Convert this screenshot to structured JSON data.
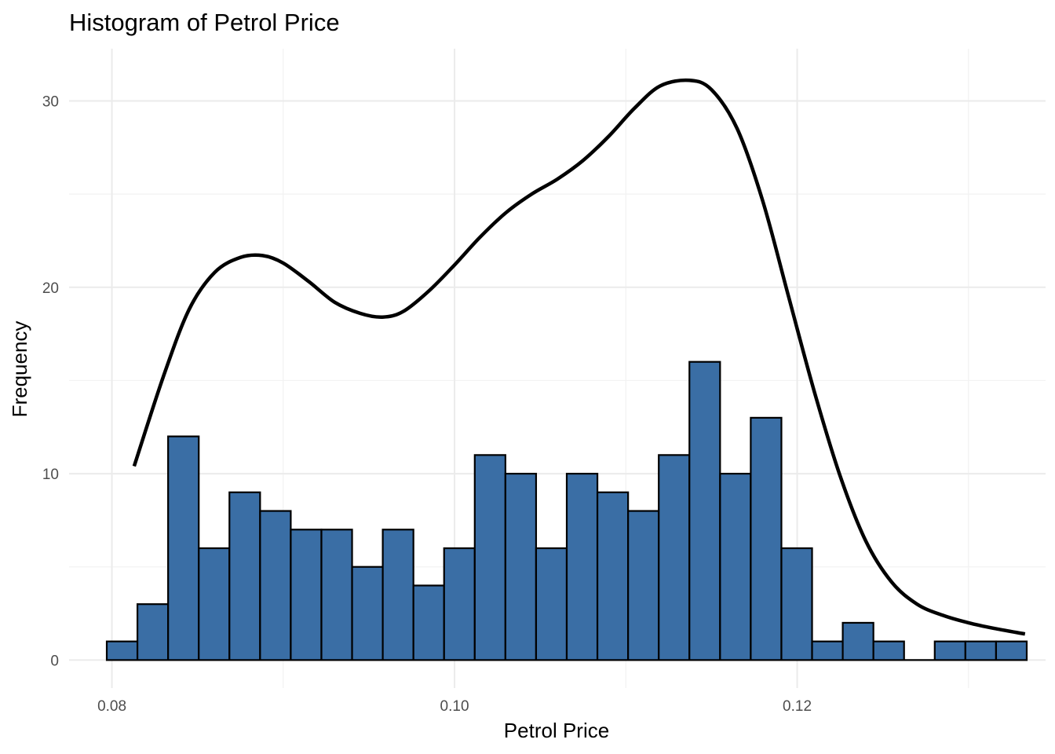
{
  "chart_data": {
    "type": "bar",
    "subtype": "histogram",
    "title": "Histogram of Petrol Price",
    "xlabel": "Petrol Price",
    "ylabel": "Frequency",
    "xlim": [
      0.0775,
      0.1345
    ],
    "ylim": [
      -1.5,
      32.8
    ],
    "x_ticks": [
      {
        "value": 0.08,
        "label": "0.08"
      },
      {
        "value": 0.1,
        "label": "0.10"
      },
      {
        "value": 0.12,
        "label": "0.12"
      }
    ],
    "y_ticks": [
      {
        "value": 0,
        "label": "0"
      },
      {
        "value": 10,
        "label": "10"
      },
      {
        "value": 20,
        "label": "20"
      },
      {
        "value": 30,
        "label": "30"
      }
    ],
    "x_minor_gridlines": [
      0.09,
      0.11,
      0.13
    ],
    "y_minor_gridlines": [
      5,
      15,
      25
    ],
    "bin_start": 0.0797,
    "bin_width": 0.00179,
    "bar_fill": "#3a6ea5",
    "bar_outline": "#000000",
    "values": [
      1,
      3,
      12,
      6,
      9,
      8,
      7,
      7,
      5,
      7,
      4,
      6,
      11,
      10,
      6,
      10,
      9,
      8,
      11,
      16,
      10,
      13,
      6,
      1,
      2,
      1,
      0,
      1,
      1,
      1
    ],
    "density_curve": {
      "color": "#000000",
      "x": [
        0.0813,
        0.083,
        0.0845,
        0.086,
        0.0875,
        0.0888,
        0.09,
        0.0915,
        0.093,
        0.0945,
        0.0958,
        0.097,
        0.0985,
        0.1,
        0.1015,
        0.103,
        0.1045,
        0.106,
        0.1075,
        0.109,
        0.1105,
        0.112,
        0.1137,
        0.115,
        0.1165,
        0.118,
        0.1195,
        0.121,
        0.1225,
        0.124,
        0.1255,
        0.127,
        0.1285,
        0.13,
        0.1315,
        0.1333
      ],
      "y": [
        10.4,
        15.2,
        18.8,
        20.8,
        21.6,
        21.7,
        21.3,
        20.3,
        19.2,
        18.6,
        18.4,
        18.7,
        19.8,
        21.2,
        22.7,
        24.0,
        25.0,
        25.8,
        26.8,
        28.1,
        29.6,
        30.8,
        31.1,
        30.6,
        28.5,
        24.6,
        19.5,
        14.4,
        9.9,
        6.4,
        4.2,
        3.0,
        2.4,
        2.0,
        1.7,
        1.4
      ]
    }
  }
}
